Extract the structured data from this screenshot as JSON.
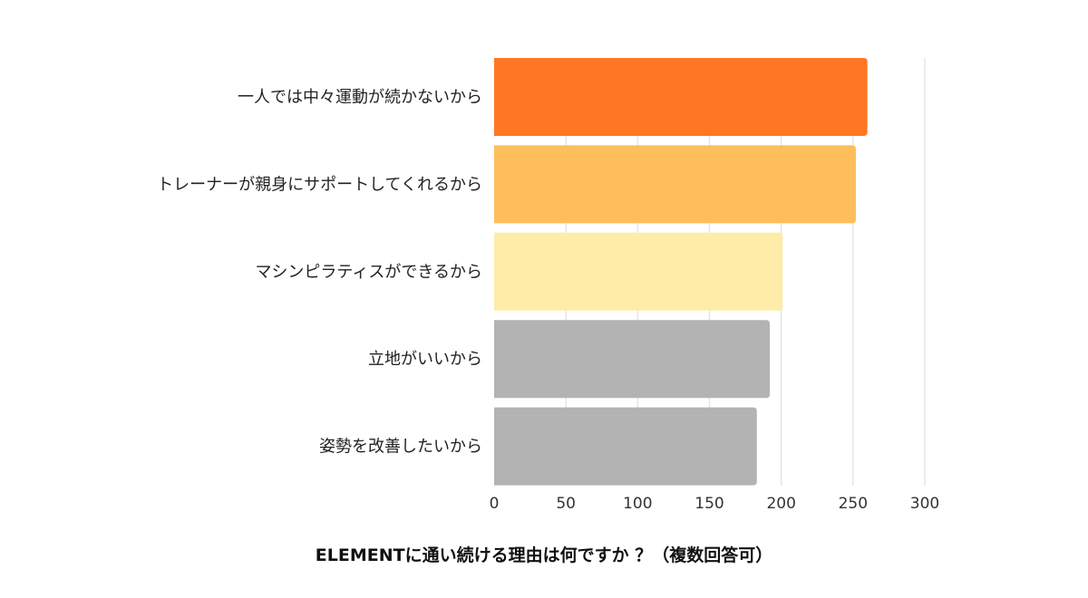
{
  "chart_data": {
    "type": "bar",
    "orientation": "horizontal",
    "title": "ELEMENTに通い続ける理由は何ですか ？（複数回答可）",
    "categories": [
      "一人では中々運動が続かないから",
      "トレーナーが親身にサポートしてくれるから",
      "マシンピラティスができるから",
      "立地がいいから",
      "姿勢を改善したいから"
    ],
    "values": [
      260,
      252,
      201,
      192,
      183
    ],
    "colors": [
      "#ff7722",
      "#febe5b",
      "#feeca8",
      "#b3b3b3",
      "#b3b3b3"
    ],
    "xlim": [
      0,
      300
    ],
    "xticks": [
      0,
      50,
      100,
      150,
      200,
      250,
      300
    ],
    "grid": true,
    "legend": "none"
  }
}
